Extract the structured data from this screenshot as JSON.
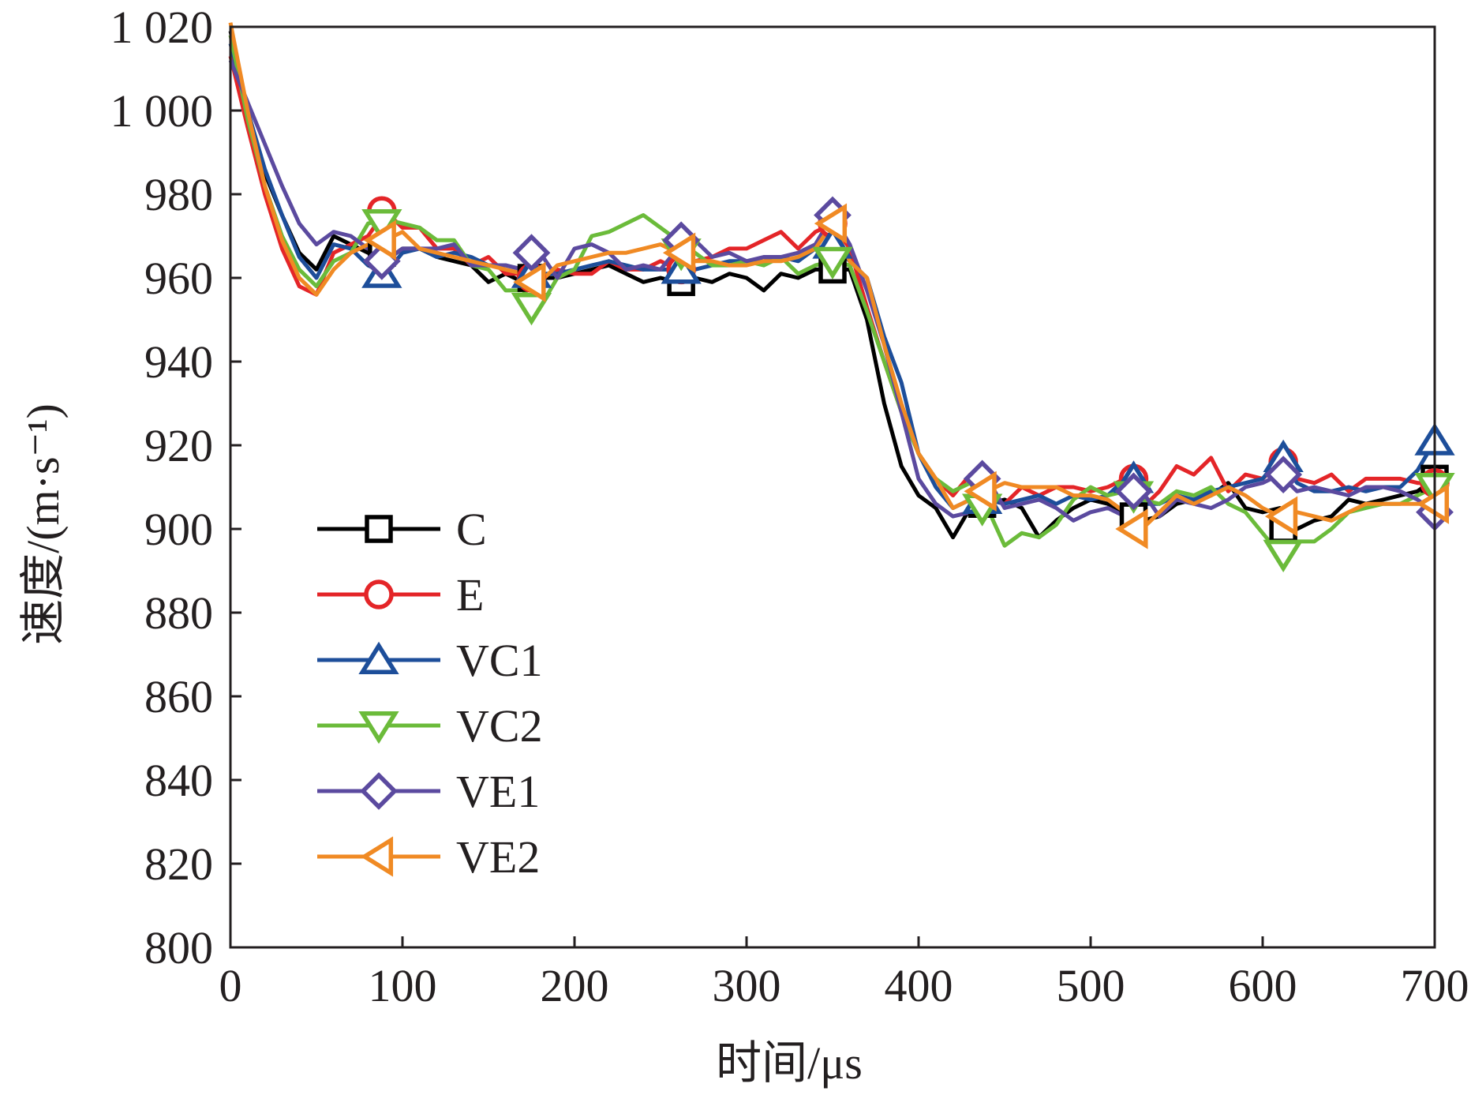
{
  "chart_data": {
    "type": "line",
    "xlabel": "时间/μs",
    "ylabel": "速度/(m·s⁻¹)",
    "xlim": [
      0,
      700
    ],
    "ylim": [
      800,
      1020
    ],
    "x_ticks": [
      "0",
      "100",
      "200",
      "300",
      "400",
      "500",
      "600",
      "700"
    ],
    "y_ticks": [
      "800",
      "820",
      "840",
      "860",
      "880",
      "900",
      "920",
      "940",
      "960",
      "980",
      "1 000",
      "1 020"
    ],
    "grid": false,
    "legend_position": "lower-left",
    "series": [
      {
        "name": "C",
        "marker": "square",
        "color": "#000000",
        "x": [
          0,
          10,
          20,
          30,
          40,
          50,
          60,
          70,
          80,
          90,
          100,
          110,
          120,
          130,
          140,
          150,
          160,
          170,
          180,
          190,
          200,
          210,
          220,
          230,
          240,
          250,
          260,
          270,
          280,
          290,
          300,
          310,
          320,
          330,
          340,
          350,
          360,
          370,
          380,
          390,
          400,
          410,
          420,
          430,
          440,
          450,
          460,
          470,
          480,
          490,
          500,
          510,
          520,
          530,
          540,
          550,
          560,
          570,
          580,
          590,
          600,
          610,
          620,
          630,
          640,
          650,
          660,
          670,
          680,
          690,
          700
        ],
        "y": [
          1019,
          1000,
          985,
          975,
          966,
          962,
          970,
          968,
          966,
          964,
          967,
          967,
          965,
          964,
          963,
          959,
          961,
          959,
          960,
          960,
          961,
          962,
          963,
          961,
          959,
          960,
          959,
          960,
          959,
          961,
          960,
          957,
          961,
          960,
          962,
          962,
          962,
          950,
          930,
          915,
          908,
          905,
          898,
          905,
          906,
          907,
          905,
          898,
          902,
          905,
          907,
          906,
          904,
          902,
          903,
          906,
          907,
          908,
          911,
          905,
          904,
          905,
          900,
          902,
          903,
          907,
          906,
          907,
          908,
          909,
          912
        ],
        "marker_x": [
          88,
          175,
          262,
          350,
          437,
          525,
          612,
          700
        ],
        "marker_y": [
          966,
          960,
          959,
          962,
          906,
          903,
          900,
          912
        ]
      },
      {
        "name": "E",
        "marker": "circle",
        "color": "#e42528",
        "x": [
          0,
          10,
          20,
          30,
          40,
          50,
          60,
          70,
          80,
          90,
          100,
          110,
          120,
          130,
          140,
          150,
          160,
          170,
          180,
          190,
          200,
          210,
          220,
          230,
          240,
          250,
          260,
          270,
          280,
          290,
          300,
          310,
          320,
          330,
          340,
          350,
          360,
          370,
          380,
          390,
          400,
          410,
          420,
          430,
          440,
          450,
          460,
          470,
          480,
          490,
          500,
          510,
          520,
          530,
          540,
          550,
          560,
          570,
          580,
          590,
          600,
          610,
          620,
          630,
          640,
          650,
          660,
          670,
          680,
          690,
          700
        ],
        "y": [
          1013,
          996,
          980,
          967,
          958,
          956,
          966,
          968,
          970,
          976,
          972,
          972,
          967,
          967,
          963,
          965,
          961,
          961,
          960,
          962,
          961,
          961,
          964,
          962,
          962,
          964,
          962,
          964,
          965,
          967,
          967,
          969,
          971,
          967,
          971,
          973,
          967,
          953,
          940,
          928,
          918,
          912,
          908,
          913,
          907,
          906,
          910,
          908,
          910,
          910,
          909,
          910,
          912,
          905,
          909,
          915,
          913,
          917,
          909,
          913,
          912,
          916,
          912,
          911,
          913,
          909,
          912,
          912,
          912,
          911,
          911
        ],
        "marker_x": [
          88,
          175,
          262,
          350,
          437,
          525,
          612,
          700
        ],
        "marker_y": [
          976,
          960,
          962,
          973,
          907,
          912,
          916,
          911
        ]
      },
      {
        "name": "VC1",
        "marker": "triangle-up",
        "color": "#1d4e9a",
        "x": [
          0,
          10,
          20,
          30,
          40,
          50,
          60,
          70,
          80,
          90,
          100,
          110,
          120,
          130,
          140,
          150,
          160,
          170,
          180,
          190,
          200,
          210,
          220,
          230,
          240,
          250,
          260,
          270,
          280,
          290,
          300,
          310,
          320,
          330,
          340,
          350,
          360,
          370,
          380,
          390,
          400,
          410,
          420,
          430,
          440,
          450,
          460,
          470,
          480,
          490,
          500,
          510,
          520,
          530,
          540,
          550,
          560,
          570,
          580,
          590,
          600,
          610,
          620,
          630,
          640,
          650,
          660,
          670,
          680,
          690,
          700
        ],
        "y": [
          1016,
          1000,
          986,
          975,
          965,
          960,
          968,
          967,
          963,
          961,
          966,
          967,
          965,
          966,
          965,
          963,
          963,
          962,
          961,
          961,
          962,
          963,
          964,
          963,
          962,
          962,
          962,
          962,
          963,
          964,
          964,
          964,
          965,
          964,
          967,
          968,
          964,
          960,
          946,
          935,
          918,
          910,
          905,
          907,
          907,
          906,
          907,
          908,
          906,
          908,
          907,
          908,
          912,
          906,
          906,
          908,
          907,
          909,
          910,
          911,
          912,
          917,
          911,
          909,
          909,
          910,
          909,
          910,
          910,
          914,
          921
        ],
        "marker_x": [
          88,
          175,
          262,
          350,
          437,
          525,
          612,
          700
        ],
        "marker_y": [
          961,
          961,
          962,
          968,
          907,
          912,
          917,
          921
        ]
      },
      {
        "name": "VC2",
        "marker": "triangle-down",
        "color": "#6bbb3a",
        "x": [
          0,
          10,
          20,
          30,
          40,
          50,
          60,
          70,
          80,
          90,
          100,
          110,
          120,
          130,
          140,
          150,
          160,
          170,
          180,
          190,
          200,
          210,
          220,
          230,
          240,
          250,
          260,
          270,
          280,
          290,
          300,
          310,
          320,
          330,
          340,
          350,
          360,
          370,
          380,
          390,
          400,
          410,
          420,
          430,
          440,
          450,
          460,
          470,
          480,
          490,
          500,
          510,
          520,
          530,
          540,
          550,
          560,
          570,
          580,
          590,
          600,
          610,
          620,
          630,
          640,
          650,
          660,
          670,
          680,
          690,
          700
        ],
        "y": [
          1018,
          998,
          982,
          970,
          962,
          958,
          964,
          966,
          973,
          974,
          973,
          972,
          969,
          969,
          963,
          962,
          957,
          957,
          953,
          960,
          962,
          970,
          971,
          973,
          975,
          972,
          969,
          966,
          963,
          963,
          964,
          963,
          965,
          961,
          963,
          964,
          963,
          952,
          940,
          928,
          918,
          912,
          909,
          911,
          905,
          896,
          899,
          898,
          901,
          907,
          910,
          908,
          909,
          907,
          906,
          909,
          908,
          910,
          906,
          904,
          899,
          894,
          897,
          897,
          900,
          904,
          905,
          906,
          906,
          908,
          910
        ],
        "marker_x": [
          88,
          175,
          262,
          350,
          437,
          525,
          612,
          700
        ],
        "marker_y": [
          973,
          953,
          966,
          964,
          905,
          908,
          894,
          910
        ]
      },
      {
        "name": "VE1",
        "marker": "diamond",
        "color": "#5b4a9f",
        "x": [
          0,
          10,
          20,
          30,
          40,
          50,
          60,
          70,
          80,
          90,
          100,
          110,
          120,
          130,
          140,
          150,
          160,
          170,
          180,
          190,
          200,
          210,
          220,
          230,
          240,
          250,
          260,
          270,
          280,
          290,
          300,
          310,
          320,
          330,
          340,
          350,
          360,
          370,
          380,
          390,
          400,
          410,
          420,
          430,
          440,
          450,
          460,
          470,
          480,
          490,
          500,
          510,
          520,
          530,
          540,
          550,
          560,
          570,
          580,
          590,
          600,
          610,
          620,
          630,
          640,
          650,
          660,
          670,
          680,
          690,
          700
        ],
        "y": [
          1012,
          1002,
          992,
          982,
          973,
          968,
          971,
          970,
          967,
          964,
          967,
          967,
          967,
          968,
          963,
          963,
          963,
          962,
          966,
          960,
          967,
          968,
          966,
          962,
          963,
          962,
          967,
          969,
          965,
          966,
          964,
          965,
          965,
          966,
          968,
          975,
          968,
          957,
          944,
          928,
          912,
          906,
          903,
          904,
          912,
          905,
          906,
          907,
          905,
          902,
          904,
          905,
          903,
          909,
          903,
          907,
          906,
          905,
          907,
          910,
          911,
          913,
          909,
          910,
          909,
          908,
          910,
          910,
          909,
          907,
          904
        ],
        "marker_x": [
          88,
          175,
          262,
          350,
          437,
          525,
          612,
          700
        ],
        "marker_y": [
          964,
          966,
          969,
          975,
          912,
          909,
          913,
          904
        ]
      },
      {
        "name": "VE2",
        "marker": "triangle-left",
        "color": "#f08a24",
        "x": [
          0,
          10,
          20,
          30,
          40,
          50,
          60,
          70,
          80,
          90,
          100,
          110,
          120,
          130,
          140,
          150,
          160,
          170,
          180,
          190,
          200,
          210,
          220,
          230,
          240,
          250,
          260,
          270,
          280,
          290,
          300,
          310,
          320,
          330,
          340,
          350,
          360,
          370,
          380,
          390,
          400,
          410,
          420,
          430,
          440,
          450,
          460,
          470,
          480,
          490,
          500,
          510,
          520,
          530,
          540,
          550,
          560,
          570,
          580,
          590,
          600,
          610,
          620,
          630,
          640,
          650,
          660,
          670,
          680,
          690,
          700
        ],
        "y": [
          1021,
          1000,
          982,
          969,
          960,
          956,
          962,
          966,
          968,
          969,
          971,
          967,
          966,
          965,
          964,
          963,
          962,
          961,
          959,
          963,
          964,
          965,
          966,
          966,
          967,
          968,
          966,
          964,
          964,
          963,
          963,
          964,
          964,
          965,
          967,
          973,
          964,
          960,
          944,
          930,
          918,
          912,
          905,
          907,
          909,
          911,
          910,
          910,
          910,
          908,
          908,
          907,
          904,
          900,
          904,
          908,
          906,
          908,
          910,
          908,
          905,
          903,
          904,
          903,
          902,
          904,
          906,
          906,
          906,
          906,
          906
        ],
        "marker_x": [
          88,
          175,
          262,
          350,
          437,
          525,
          612,
          700
        ],
        "marker_y": [
          969,
          959,
          966,
          973,
          909,
          900,
          903,
          906
        ]
      }
    ]
  }
}
